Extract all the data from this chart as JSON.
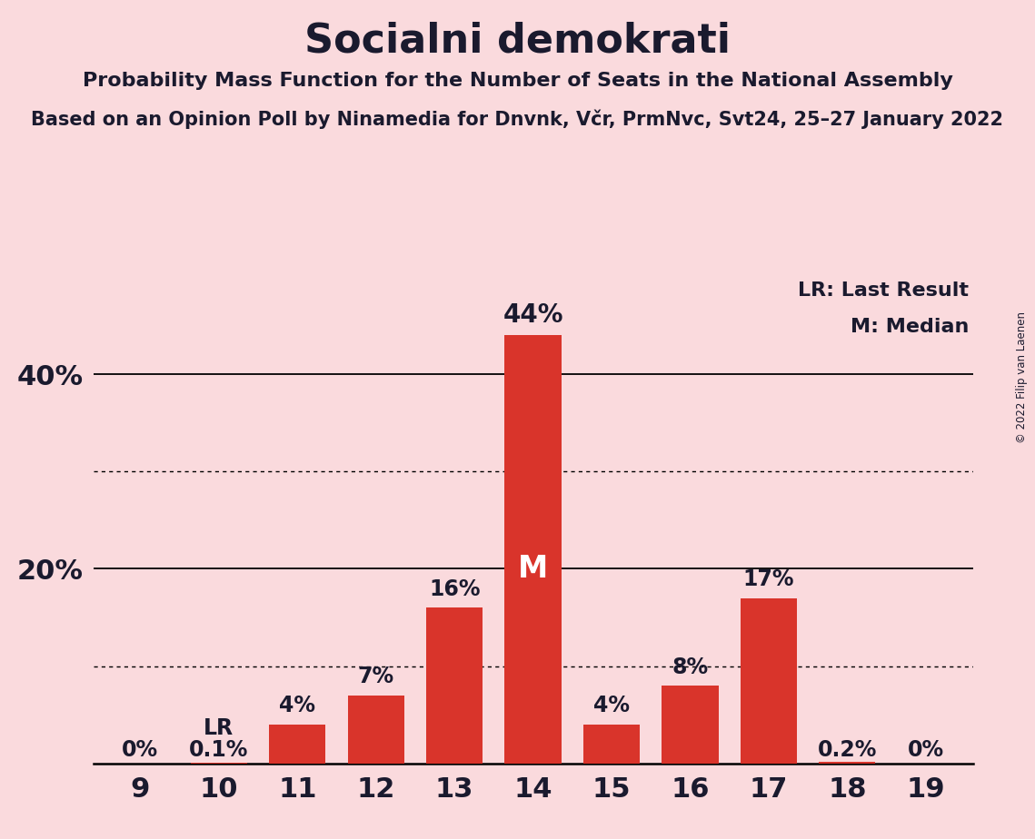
{
  "title": "Socialni demokrati",
  "subtitle1": "Probability Mass Function for the Number of Seats in the National Assembly",
  "subtitle2": "Based on an Opinion Poll by Ninamedia for Dnvnk, Včr, PrmNvc, Svt24, 25–27 January 2022",
  "copyright": "© 2022 Filip van Laenen",
  "categories": [
    9,
    10,
    11,
    12,
    13,
    14,
    15,
    16,
    17,
    18,
    19
  ],
  "values": [
    0.0,
    0.1,
    4.0,
    7.0,
    16.0,
    44.0,
    4.0,
    8.0,
    17.0,
    0.2,
    0.0
  ],
  "labels": [
    "0%",
    "0.1%",
    "4%",
    "7%",
    "16%",
    "44%",
    "4%",
    "8%",
    "17%",
    "0.2%",
    "0%"
  ],
  "bar_color": "#d9342b",
  "background_color": "#fadadd",
  "text_color": "#1a1a2e",
  "median_bar": 14,
  "lr_bar": 10,
  "median_label": "M",
  "lr_label": "LR",
  "legend_lr": "LR: Last Result",
  "legend_m": "M: Median",
  "ylim_max": 50,
  "solid_yticks": [
    20,
    40
  ],
  "dotted_yticks": [
    10,
    30
  ]
}
